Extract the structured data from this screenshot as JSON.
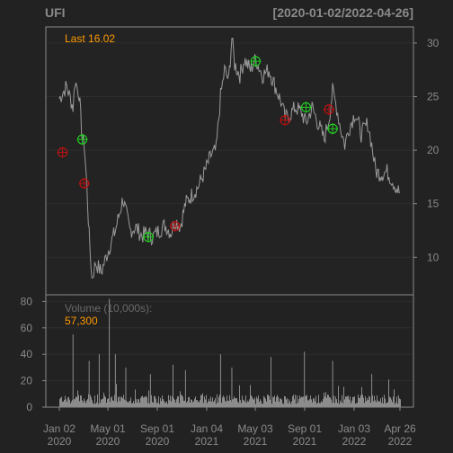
{
  "header": {
    "ticker": "UFI",
    "date_range": "[2020-01-02/2022-04-26]"
  },
  "price_panel": {
    "last_label": "Last 16.02",
    "y_ticks": [
      "10",
      "15",
      "20",
      "25",
      "30"
    ]
  },
  "volume_panel": {
    "label": "Volume (10,000s):",
    "last_volume": "57,300",
    "y_ticks": [
      "0",
      "20",
      "40",
      "60",
      "80"
    ]
  },
  "x_axis": {
    "ticks": [
      {
        "month": "Jan 02",
        "year": "2020"
      },
      {
        "month": "May 01",
        "year": "2020"
      },
      {
        "month": "Sep 01",
        "year": "2020"
      },
      {
        "month": "Jan 04",
        "year": "2021"
      },
      {
        "month": "May 03",
        "year": "2021"
      },
      {
        "month": "Sep 01",
        "year": "2021"
      },
      {
        "month": "Jan 03",
        "year": "2022"
      },
      {
        "month": "Apr 26",
        "year": "2022"
      }
    ]
  },
  "colors": {
    "background": "#222222",
    "frame": "#8a8a8a",
    "grid": "#2e2e2e",
    "price_line": "#9a9a9a",
    "volume_bars": "#8c8c8c",
    "text": "#8a8a8a",
    "accent": "#ff9900",
    "buy": "#22cc22",
    "sell": "#bb1111"
  },
  "chart_data": {
    "type": "line",
    "title": "UFI",
    "x_range": [
      "2020-01-02",
      "2022-04-26"
    ],
    "price_ylim": [
      6.5,
      31.5
    ],
    "volume_ylim": [
      0,
      85
    ],
    "last_price": 16.02,
    "last_volume": 57300,
    "price_path": [
      [
        "2020-01-02",
        24.8
      ],
      [
        "2020-01-20",
        26.0
      ],
      [
        "2020-02-05",
        24.0
      ],
      [
        "2020-02-10",
        26.5
      ],
      [
        "2020-02-20",
        25.3
      ],
      [
        "2020-02-28",
        21.0
      ],
      [
        "2020-03-04",
        20.5
      ],
      [
        "2020-03-10",
        16.8
      ],
      [
        "2020-03-16",
        12.0
      ],
      [
        "2020-03-23",
        8.0
      ],
      [
        "2020-04-01",
        9.5
      ],
      [
        "2020-04-15",
        8.6
      ],
      [
        "2020-05-01",
        10.5
      ],
      [
        "2020-05-20",
        12.5
      ],
      [
        "2020-06-08",
        15.5
      ],
      [
        "2020-06-25",
        12.5
      ],
      [
        "2020-07-10",
        12.8
      ],
      [
        "2020-07-25",
        12.0
      ],
      [
        "2020-08-05",
        12.3
      ],
      [
        "2020-08-20",
        11.9
      ],
      [
        "2020-09-05",
        12.5
      ],
      [
        "2020-09-20",
        13.0
      ],
      [
        "2020-10-05",
        12.3
      ],
      [
        "2020-10-15",
        13.5
      ],
      [
        "2020-10-28",
        12.9
      ],
      [
        "2020-11-10",
        15.0
      ],
      [
        "2020-11-25",
        15.8
      ],
      [
        "2020-12-10",
        16.5
      ],
      [
        "2020-12-28",
        18.0
      ],
      [
        "2021-01-12",
        19.5
      ],
      [
        "2021-01-25",
        20.0
      ],
      [
        "2021-02-05",
        25.0
      ],
      [
        "2021-02-15",
        27.5
      ],
      [
        "2021-02-25",
        26.5
      ],
      [
        "2021-03-05",
        30.5
      ],
      [
        "2021-03-12",
        28.0
      ],
      [
        "2021-03-25",
        27.0
      ],
      [
        "2021-04-05",
        28.5
      ],
      [
        "2021-04-20",
        27.5
      ],
      [
        "2021-05-03",
        28.5
      ],
      [
        "2021-05-20",
        27.0
      ],
      [
        "2021-06-05",
        27.5
      ],
      [
        "2021-06-20",
        26.0
      ],
      [
        "2021-07-05",
        24.5
      ],
      [
        "2021-07-15",
        23.0
      ],
      [
        "2021-07-25",
        23.2
      ],
      [
        "2021-08-10",
        24.0
      ],
      [
        "2021-08-25",
        23.5
      ],
      [
        "2021-09-05",
        22.5
      ],
      [
        "2021-09-20",
        24.0
      ],
      [
        "2021-10-05",
        22.5
      ],
      [
        "2021-10-20",
        21.0
      ],
      [
        "2021-11-01",
        23.0
      ],
      [
        "2021-11-10",
        25.5
      ],
      [
        "2021-11-20",
        24.0
      ],
      [
        "2021-11-30",
        22.0
      ],
      [
        "2021-12-10",
        20.5
      ],
      [
        "2021-12-20",
        22.0
      ],
      [
        "2022-01-05",
        23.5
      ],
      [
        "2022-01-20",
        21.5
      ],
      [
        "2022-02-05",
        22.5
      ],
      [
        "2022-02-15",
        20.5
      ],
      [
        "2022-02-25",
        18.0
      ],
      [
        "2022-03-10",
        17.8
      ],
      [
        "2022-03-25",
        18.0
      ],
      [
        "2022-04-10",
        17.0
      ],
      [
        "2022-04-20",
        16.3
      ],
      [
        "2022-04-26",
        16.02
      ]
    ],
    "buy_signals": [
      {
        "date": "2020-02-28",
        "price": 21.0
      },
      {
        "date": "2020-08-10",
        "price": 11.9
      },
      {
        "date": "2021-05-03",
        "price": 28.3
      },
      {
        "date": "2021-09-05",
        "price": 24.0
      },
      {
        "date": "2021-11-10",
        "price": 22.0
      }
    ],
    "sell_signals": [
      {
        "date": "2020-01-10",
        "price": 19.8
      },
      {
        "date": "2020-03-04",
        "price": 16.9
      },
      {
        "date": "2020-10-15",
        "price": 12.9
      },
      {
        "date": "2021-07-15",
        "price": 22.8
      },
      {
        "date": "2021-11-01",
        "price": 23.8
      }
    ],
    "volume_spikes": [
      {
        "date": "2020-02-05",
        "value": 55
      },
      {
        "date": "2020-03-16",
        "value": 35
      },
      {
        "date": "2020-04-10",
        "value": 40
      },
      {
        "date": "2020-05-05",
        "value": 82
      },
      {
        "date": "2020-05-20",
        "value": 40
      },
      {
        "date": "2020-06-15",
        "value": 30
      },
      {
        "date": "2020-08-15",
        "value": 25
      },
      {
        "date": "2020-10-10",
        "value": 32
      },
      {
        "date": "2020-11-10",
        "value": 28
      },
      {
        "date": "2021-02-05",
        "value": 40
      },
      {
        "date": "2021-03-05",
        "value": 30
      },
      {
        "date": "2021-06-10",
        "value": 38
      },
      {
        "date": "2021-09-01",
        "value": 42
      },
      {
        "date": "2021-11-10",
        "value": 35
      },
      {
        "date": "2022-02-15",
        "value": 25
      }
    ],
    "volume_baseline": 8
  }
}
